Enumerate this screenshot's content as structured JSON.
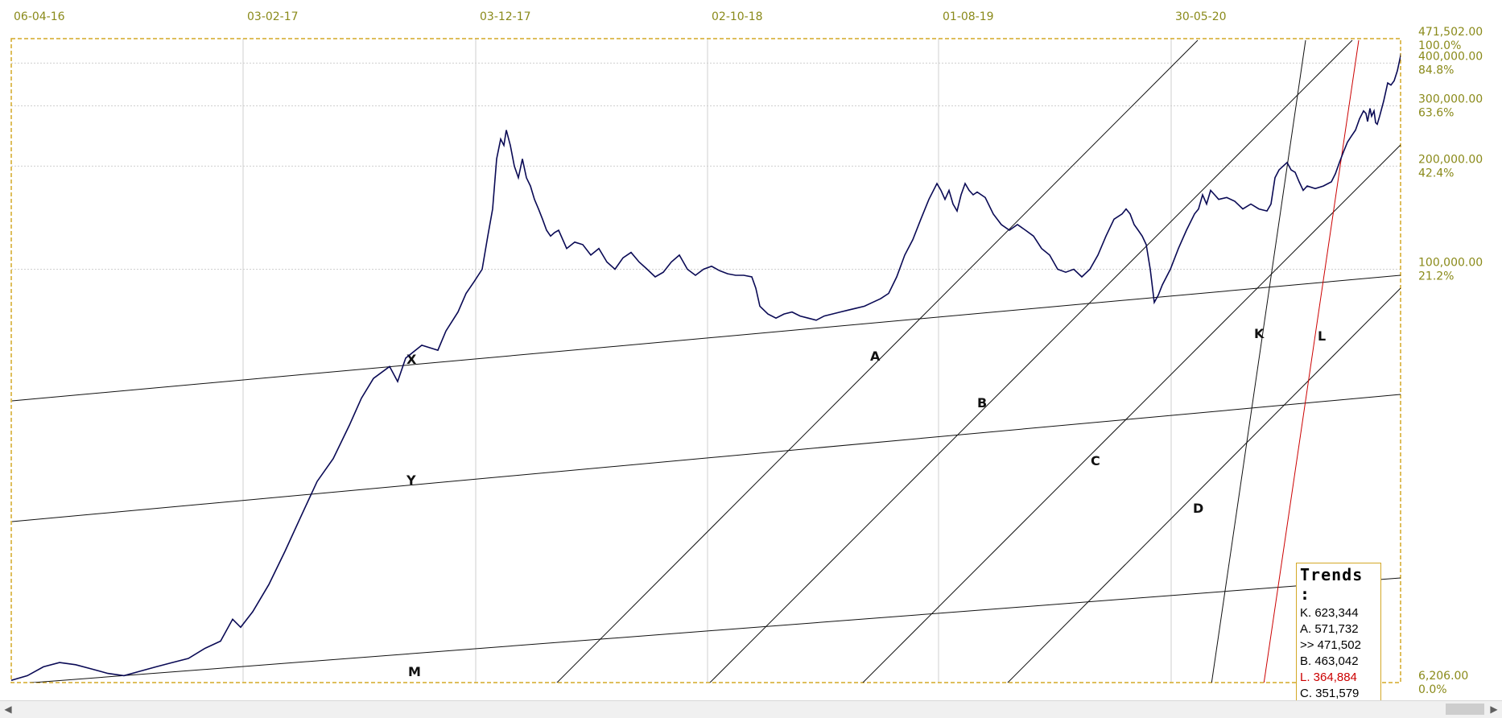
{
  "chart_data": {
    "type": "line",
    "x_tick_labels": [
      "06-04-16",
      "03-02-17",
      "03-12-17",
      "02-10-18",
      "01-08-19",
      "30-05-20"
    ],
    "y_axis": {
      "scale": "log",
      "ticks": [
        {
          "value": "471,502.00",
          "pct": "100.0%"
        },
        {
          "value": "400,000.00",
          "pct": "84.8%"
        },
        {
          "value": "300,000.00",
          "pct": "63.6%"
        },
        {
          "value": "200,000.00",
          "pct": "42.4%"
        },
        {
          "value": "100,000.00",
          "pct": "21.2%"
        },
        {
          "value": "6,206.00",
          "pct": "0.0%"
        }
      ],
      "min": 6206,
      "max": 471502,
      "side": "right"
    },
    "grid": true,
    "price_color": "#0a0a55",
    "trendline_color": "#111111",
    "red_color": "#cc0000",
    "price_path": [
      [
        0,
        6300
      ],
      [
        20,
        6500
      ],
      [
        40,
        6900
      ],
      [
        60,
        7100
      ],
      [
        80,
        7000
      ],
      [
        100,
        6800
      ],
      [
        120,
        6600
      ],
      [
        140,
        6500
      ],
      [
        160,
        6700
      ],
      [
        180,
        6900
      ],
      [
        200,
        7100
      ],
      [
        220,
        7300
      ],
      [
        240,
        7800
      ],
      [
        260,
        8200
      ],
      [
        275,
        9500
      ],
      [
        285,
        9000
      ],
      [
        300,
        10000
      ],
      [
        320,
        12000
      ],
      [
        340,
        15000
      ],
      [
        360,
        19000
      ],
      [
        380,
        24000
      ],
      [
        400,
        28000
      ],
      [
        420,
        35000
      ],
      [
        435,
        42000
      ],
      [
        450,
        48000
      ],
      [
        470,
        52000
      ],
      [
        480,
        47000
      ],
      [
        490,
        55000
      ],
      [
        510,
        60000
      ],
      [
        530,
        58000
      ],
      [
        540,
        66000
      ],
      [
        555,
        75000
      ],
      [
        565,
        85000
      ],
      [
        575,
        92000
      ],
      [
        585,
        100000
      ],
      [
        592,
        125000
      ],
      [
        598,
        150000
      ],
      [
        603,
        210000
      ],
      [
        608,
        240000
      ],
      [
        612,
        230000
      ],
      [
        615,
        255000
      ],
      [
        620,
        230000
      ],
      [
        625,
        200000
      ],
      [
        630,
        185000
      ],
      [
        635,
        210000
      ],
      [
        640,
        185000
      ],
      [
        645,
        175000
      ],
      [
        650,
        160000
      ],
      [
        655,
        150000
      ],
      [
        660,
        140000
      ],
      [
        665,
        130000
      ],
      [
        670,
        125000
      ],
      [
        675,
        128000
      ],
      [
        680,
        130000
      ],
      [
        690,
        115000
      ],
      [
        700,
        120000
      ],
      [
        710,
        118000
      ],
      [
        720,
        110000
      ],
      [
        730,
        115000
      ],
      [
        740,
        105000
      ],
      [
        750,
        100000
      ],
      [
        760,
        108000
      ],
      [
        770,
        112000
      ],
      [
        780,
        105000
      ],
      [
        790,
        100000
      ],
      [
        800,
        95000
      ],
      [
        810,
        98000
      ],
      [
        820,
        105000
      ],
      [
        830,
        110000
      ],
      [
        840,
        100000
      ],
      [
        850,
        96000
      ],
      [
        860,
        100000
      ],
      [
        870,
        102000
      ],
      [
        880,
        99000
      ],
      [
        890,
        97000
      ],
      [
        900,
        96000
      ],
      [
        910,
        96000
      ],
      [
        920,
        95000
      ],
      [
        925,
        88000
      ],
      [
        930,
        78000
      ],
      [
        940,
        74000
      ],
      [
        950,
        72000
      ],
      [
        960,
        74000
      ],
      [
        970,
        75000
      ],
      [
        980,
        73000
      ],
      [
        990,
        72000
      ],
      [
        1000,
        71000
      ],
      [
        1010,
        73000
      ],
      [
        1020,
        74000
      ],
      [
        1030,
        75000
      ],
      [
        1040,
        76000
      ],
      [
        1050,
        77000
      ],
      [
        1060,
        78000
      ],
      [
        1070,
        80000
      ],
      [
        1080,
        82000
      ],
      [
        1090,
        85000
      ],
      [
        1100,
        95000
      ],
      [
        1110,
        110000
      ],
      [
        1120,
        122000
      ],
      [
        1130,
        140000
      ],
      [
        1140,
        160000
      ],
      [
        1150,
        178000
      ],
      [
        1155,
        170000
      ],
      [
        1160,
        160000
      ],
      [
        1165,
        170000
      ],
      [
        1170,
        155000
      ],
      [
        1175,
        148000
      ],
      [
        1180,
        165000
      ],
      [
        1185,
        178000
      ],
      [
        1190,
        170000
      ],
      [
        1195,
        165000
      ],
      [
        1200,
        168000
      ],
      [
        1210,
        162000
      ],
      [
        1220,
        145000
      ],
      [
        1230,
        135000
      ],
      [
        1240,
        130000
      ],
      [
        1250,
        135000
      ],
      [
        1260,
        130000
      ],
      [
        1270,
        125000
      ],
      [
        1280,
        115000
      ],
      [
        1290,
        110000
      ],
      [
        1300,
        100000
      ],
      [
        1310,
        98000
      ],
      [
        1320,
        100000
      ],
      [
        1330,
        95000
      ],
      [
        1340,
        100000
      ],
      [
        1350,
        110000
      ],
      [
        1360,
        125000
      ],
      [
        1370,
        140000
      ],
      [
        1380,
        145000
      ],
      [
        1385,
        150000
      ],
      [
        1390,
        145000
      ],
      [
        1395,
        135000
      ],
      [
        1400,
        130000
      ],
      [
        1405,
        125000
      ],
      [
        1410,
        118000
      ],
      [
        1415,
        100000
      ],
      [
        1420,
        80000
      ],
      [
        1425,
        84000
      ],
      [
        1430,
        90000
      ],
      [
        1440,
        100000
      ],
      [
        1450,
        115000
      ],
      [
        1460,
        130000
      ],
      [
        1470,
        145000
      ],
      [
        1475,
        150000
      ],
      [
        1480,
        165000
      ],
      [
        1485,
        155000
      ],
      [
        1490,
        170000
      ],
      [
        1495,
        165000
      ],
      [
        1500,
        160000
      ],
      [
        1510,
        162000
      ],
      [
        1520,
        158000
      ],
      [
        1530,
        150000
      ],
      [
        1540,
        155000
      ],
      [
        1550,
        150000
      ],
      [
        1560,
        148000
      ],
      [
        1565,
        155000
      ],
      [
        1570,
        185000
      ],
      [
        1575,
        195000
      ],
      [
        1580,
        200000
      ],
      [
        1585,
        205000
      ],
      [
        1590,
        195000
      ],
      [
        1595,
        192000
      ],
      [
        1600,
        180000
      ],
      [
        1605,
        170000
      ],
      [
        1610,
        175000
      ],
      [
        1620,
        172000
      ],
      [
        1630,
        175000
      ],
      [
        1640,
        180000
      ],
      [
        1645,
        190000
      ],
      [
        1650,
        205000
      ],
      [
        1655,
        220000
      ],
      [
        1660,
        235000
      ],
      [
        1665,
        245000
      ],
      [
        1670,
        255000
      ],
      [
        1675,
        275000
      ],
      [
        1680,
        290000
      ],
      [
        1683,
        285000
      ],
      [
        1685,
        270000
      ],
      [
        1688,
        295000
      ],
      [
        1690,
        280000
      ],
      [
        1693,
        290000
      ],
      [
        1695,
        268000
      ],
      [
        1697,
        265000
      ],
      [
        1700,
        280000
      ],
      [
        1705,
        310000
      ],
      [
        1710,
        350000
      ],
      [
        1714,
        345000
      ],
      [
        1718,
        355000
      ],
      [
        1722,
        380000
      ],
      [
        1726,
        420000
      ],
      [
        1730,
        460000
      ],
      [
        1732,
        475000
      ]
    ],
    "trendlines": [
      {
        "label": "X",
        "points": [
          [
            15,
            498
          ],
          [
            1740,
            342
          ]
        ],
        "color": "#111111"
      },
      {
        "label": "Y",
        "points": [
          [
            15,
            648
          ],
          [
            1740,
            490
          ]
        ],
        "color": "#111111"
      },
      {
        "label": "M",
        "points": [
          [
            15,
            850
          ],
          [
            1740,
            718
          ]
        ],
        "color": "#111111"
      },
      {
        "label": "A",
        "points": [
          [
            690,
            850
          ],
          [
            1488,
            50
          ]
        ],
        "color": "#111111"
      },
      {
        "label": "B",
        "points": [
          [
            880,
            850
          ],
          [
            1680,
            50
          ]
        ],
        "color": "#111111"
      },
      {
        "label": "C",
        "points": [
          [
            1070,
            850
          ],
          [
            1740,
            180
          ]
        ],
        "color": "#111111"
      },
      {
        "label": "D",
        "points": [
          [
            1250,
            850
          ],
          [
            1740,
            358
          ]
        ],
        "color": "#111111"
      },
      {
        "label": "K",
        "points": [
          [
            1505,
            850
          ],
          [
            1622,
            50
          ]
        ],
        "color": "#111111"
      },
      {
        "label": "L",
        "points": [
          [
            1570,
            850
          ],
          [
            1688,
            50
          ]
        ],
        "color": "#cc0000"
      }
    ],
    "trendline_labels": [
      {
        "text": "X",
        "pos": [
          505,
          452
        ]
      },
      {
        "text": "Y",
        "pos": [
          505,
          602
        ]
      },
      {
        "text": "M",
        "pos": [
          507,
          840
        ]
      },
      {
        "text": "A",
        "pos": [
          1081,
          448
        ]
      },
      {
        "text": "B",
        "pos": [
          1214,
          506
        ]
      },
      {
        "text": "C",
        "pos": [
          1355,
          578
        ]
      },
      {
        "text": "D",
        "pos": [
          1482,
          637
        ]
      },
      {
        "text": "K",
        "pos": [
          1558,
          420
        ]
      },
      {
        "text": "L",
        "pos": [
          1637,
          423
        ],
        "red": true
      }
    ],
    "legend": {
      "title": "Trends :",
      "items": [
        {
          "label": "K. 623,344",
          "red": false
        },
        {
          "label": "A. 571,732",
          "red": false
        },
        {
          "label": ">> 471,502",
          "red": false
        },
        {
          "label": "B. 463,042",
          "red": false
        },
        {
          "label": "L. 364,884",
          "red": true
        },
        {
          "label": "C. 351,579",
          "red": false
        }
      ],
      "placement": "bottom-right"
    }
  }
}
